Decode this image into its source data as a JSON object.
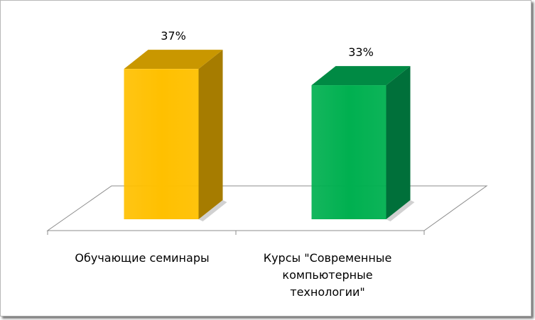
{
  "chart_data": {
    "type": "bar",
    "style": "3d-column",
    "categories": [
      [
        "Обучающие семинары"
      ],
      [
        "Курсы \"Современные",
        "компьютерные",
        "технологии\""
      ]
    ],
    "values": [
      37,
      33
    ],
    "value_labels": [
      "37%",
      "33%"
    ],
    "colors": [
      "#FFC000",
      "#00B050"
    ],
    "side_colors": [
      "#A67C00",
      "#00703A"
    ],
    "top_colors": [
      "#C99700",
      "#008A44"
    ],
    "ylim": [
      0,
      40
    ],
    "legend": "none",
    "grid": false
  }
}
